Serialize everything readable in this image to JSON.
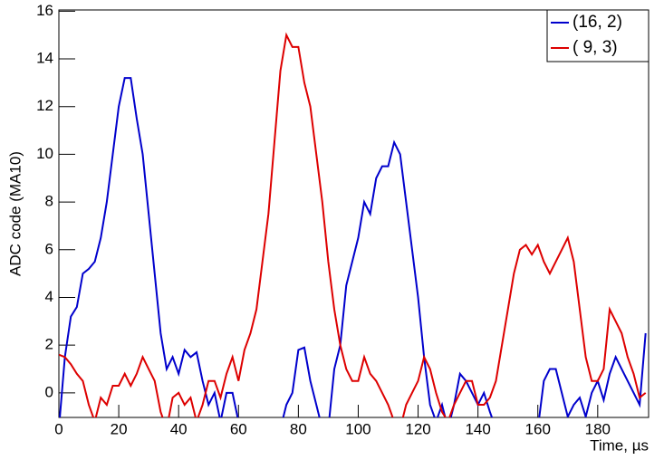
{
  "chart_data": {
    "type": "line",
    "x_label": "Time, µs",
    "y_label": "ADC code (MA10)",
    "xlim": [
      0,
      197
    ],
    "xticks": [
      0,
      20,
      40,
      60,
      80,
      100,
      120,
      140,
      160,
      180
    ],
    "ylim": [
      -1.03,
      16.05
    ],
    "yticks": [
      0,
      2,
      4,
      6,
      8,
      10,
      12,
      14,
      16
    ],
    "legend": "top-right",
    "x": [
      0,
      2,
      4,
      6,
      8,
      10,
      12,
      14,
      16,
      18,
      20,
      22,
      24,
      26,
      28,
      30,
      32,
      34,
      36,
      38,
      40,
      42,
      44,
      46,
      48,
      50,
      52,
      54,
      56,
      58,
      60,
      62,
      64,
      66,
      68,
      70,
      72,
      74,
      76,
      78,
      80,
      82,
      84,
      86,
      88,
      90,
      92,
      94,
      96,
      98,
      100,
      102,
      104,
      106,
      108,
      110,
      112,
      114,
      116,
      118,
      120,
      122,
      124,
      126,
      128,
      130,
      132,
      134,
      136,
      138,
      140,
      142,
      144,
      146,
      148,
      150,
      152,
      154,
      156,
      158,
      160,
      162,
      164,
      166,
      168,
      170,
      172,
      174,
      176,
      178,
      180,
      182,
      184,
      186,
      188,
      190,
      192,
      194,
      196
    ],
    "series": [
      {
        "name": "(16, 2)",
        "color": "#0000cc",
        "values": [
          -1.5,
          1.5,
          3.2,
          3.6,
          5,
          5.2,
          5.5,
          6.5,
          8,
          10,
          12,
          13.2,
          13.2,
          11.5,
          10,
          7.5,
          5,
          2.5,
          1,
          1.5,
          0.8,
          1.8,
          1.5,
          1.7,
          0.5,
          -0.5,
          0,
          -1.2,
          0,
          0,
          -1.2,
          -1.5,
          -1.5,
          -1.5,
          -1.5,
          -1.5,
          -1.5,
          -1.5,
          -0.5,
          0,
          1.8,
          1.9,
          0.5,
          -0.5,
          -1.5,
          -1.5,
          1,
          2,
          4.5,
          5.5,
          6.5,
          8,
          7.5,
          9,
          9.5,
          9.5,
          10.5,
          10,
          8,
          6,
          4,
          1.5,
          -0.5,
          -1.2,
          -0.5,
          -1.5,
          -0.5,
          0.8,
          0.5,
          0,
          -0.5,
          0,
          -0.8,
          -1.5,
          -1.5,
          -1.5,
          -1.5,
          -1.5,
          -1.5,
          -1.5,
          -1.5,
          0.5,
          1,
          1,
          0,
          -1,
          -0.5,
          -0.2,
          -1,
          0,
          0.5,
          -0.3,
          0.8,
          1.5,
          1,
          0.5,
          0,
          -0.5,
          2.5
        ]
      },
      {
        "name": "( 9, 3)",
        "color": "#dd0000",
        "values": [
          1.6,
          1.5,
          1.2,
          0.8,
          0.5,
          -0.5,
          -1.2,
          -0.2,
          -0.5,
          0.3,
          0.3,
          0.8,
          0.3,
          0.8,
          1.5,
          1,
          0.5,
          -0.8,
          -1.5,
          -0.2,
          0,
          -0.5,
          -0.2,
          -1.2,
          -0.5,
          0.5,
          0.5,
          -0.2,
          0.8,
          1.5,
          0.5,
          1.8,
          2.5,
          3.5,
          5.5,
          7.5,
          10.5,
          13.5,
          15,
          14.5,
          14.5,
          13,
          12,
          10,
          8,
          5.5,
          3.5,
          2,
          1,
          0.5,
          0.5,
          1.5,
          0.8,
          0.5,
          0,
          -0.5,
          -1.2,
          -1.5,
          -0.5,
          0,
          0.5,
          1.5,
          1,
          0,
          -0.8,
          -1.2,
          -0.5,
          0,
          0.5,
          0.5,
          -0.5,
          -0.5,
          -0.2,
          0.5,
          2,
          3.5,
          5,
          6,
          6.2,
          5.8,
          6.2,
          5.5,
          5,
          5.5,
          6,
          6.5,
          5.5,
          3.5,
          1.5,
          0.5,
          0.5,
          1,
          3.5,
          3,
          2.5,
          1.5,
          0.8,
          -0.2,
          0
        ]
      }
    ]
  }
}
